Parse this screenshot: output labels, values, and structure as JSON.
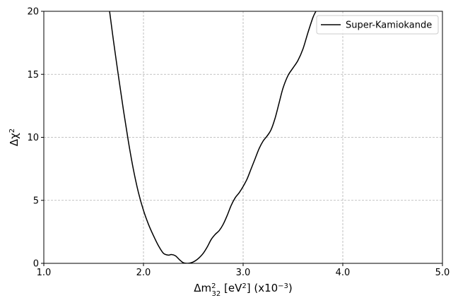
{
  "chart_data": {
    "type": "line",
    "xlabel": {
      "base": "Δm",
      "sup": "2",
      "sub": "32",
      "unit_open": " [eV",
      "unit_sup": "2",
      "unit_close": "] (x10",
      "exp_sup": "−3",
      "suffix": ")"
    },
    "ylabel": {
      "base": "Δχ",
      "sup": "2"
    },
    "xlim": [
      1.0,
      5.0
    ],
    "ylim": [
      0,
      20
    ],
    "x_ticks": [
      "1.0",
      "2.0",
      "3.0",
      "4.0",
      "5.0"
    ],
    "y_ticks": [
      "0",
      "5",
      "10",
      "15",
      "20"
    ],
    "grid": true,
    "legend_position": "top-right",
    "series": [
      {
        "name": "Super-Kamiokande",
        "color": "#000000",
        "points": [
          [
            1.66,
            20.0
          ],
          [
            1.7,
            17.6
          ],
          [
            1.75,
            14.8
          ],
          [
            1.8,
            12.1
          ],
          [
            1.85,
            9.6
          ],
          [
            1.9,
            7.4
          ],
          [
            1.95,
            5.6
          ],
          [
            2.0,
            4.2
          ],
          [
            2.05,
            3.1
          ],
          [
            2.1,
            2.2
          ],
          [
            2.15,
            1.4
          ],
          [
            2.2,
            0.8
          ],
          [
            2.25,
            0.65
          ],
          [
            2.28,
            0.7
          ],
          [
            2.32,
            0.6
          ],
          [
            2.36,
            0.3
          ],
          [
            2.4,
            0.05
          ],
          [
            2.44,
            0.0
          ],
          [
            2.48,
            0.05
          ],
          [
            2.52,
            0.2
          ],
          [
            2.56,
            0.45
          ],
          [
            2.6,
            0.8
          ],
          [
            2.64,
            1.3
          ],
          [
            2.68,
            1.9
          ],
          [
            2.72,
            2.3
          ],
          [
            2.76,
            2.6
          ],
          [
            2.8,
            3.1
          ],
          [
            2.84,
            3.8
          ],
          [
            2.88,
            4.6
          ],
          [
            2.92,
            5.2
          ],
          [
            2.96,
            5.6
          ],
          [
            3.0,
            6.1
          ],
          [
            3.04,
            6.7
          ],
          [
            3.08,
            7.5
          ],
          [
            3.12,
            8.3
          ],
          [
            3.16,
            9.1
          ],
          [
            3.2,
            9.7
          ],
          [
            3.24,
            10.1
          ],
          [
            3.28,
            10.6
          ],
          [
            3.32,
            11.5
          ],
          [
            3.36,
            12.7
          ],
          [
            3.4,
            13.9
          ],
          [
            3.45,
            14.9
          ],
          [
            3.5,
            15.5
          ],
          [
            3.55,
            16.1
          ],
          [
            3.6,
            17.0
          ],
          [
            3.65,
            18.3
          ],
          [
            3.7,
            19.5
          ],
          [
            3.73,
            20.0
          ]
        ]
      }
    ]
  }
}
